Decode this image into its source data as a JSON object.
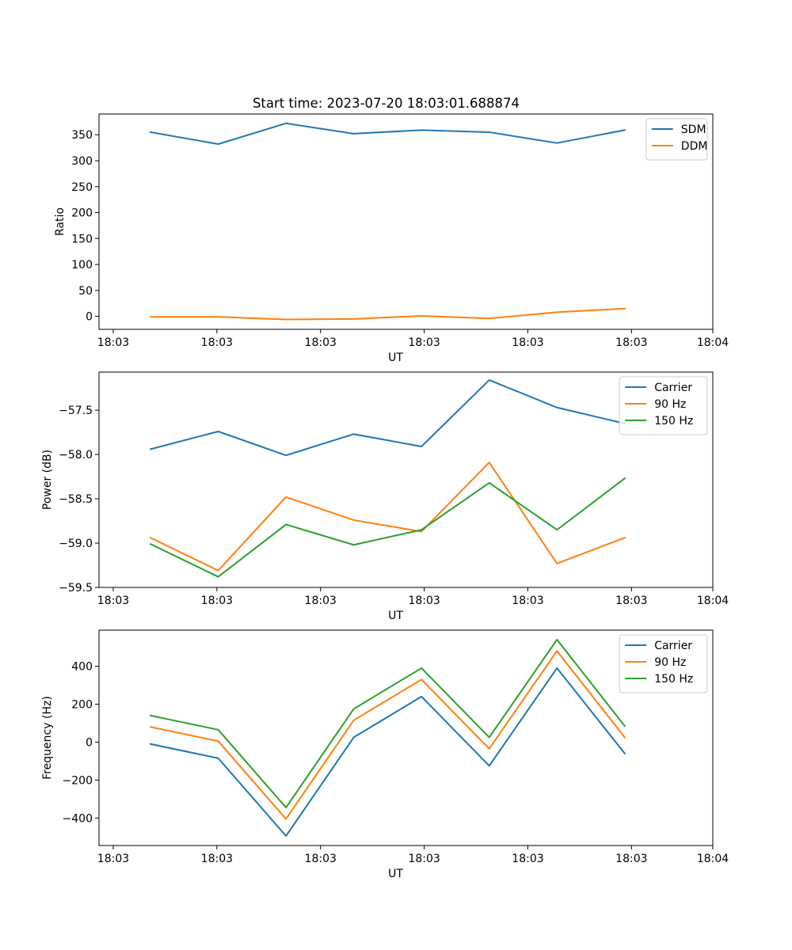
{
  "chart_data": [
    {
      "type": "line",
      "title": "Start time: 2023-07-20 18:03:01.688874",
      "xlabel": "UT",
      "ylabel": "Ratio",
      "x": [
        1,
        2,
        3,
        4,
        5,
        6,
        7,
        8
      ],
      "xlim": [
        0.24,
        9.3
      ],
      "xticks": [
        0.45,
        1.98,
        3.51,
        5.04,
        6.57,
        8.1,
        9.3
      ],
      "xticklabels": [
        "18:03",
        "18:03",
        "18:03",
        "18:03",
        "18:03",
        "18:03",
        "18:04"
      ],
      "ylim": [
        -25,
        390
      ],
      "yticks": [
        0,
        50,
        100,
        150,
        200,
        250,
        300,
        350
      ],
      "yticklabels": [
        "0",
        "50",
        "100",
        "150",
        "200",
        "250",
        "300",
        "350"
      ],
      "legend": "top-right",
      "series": [
        {
          "name": "SDM",
          "color": "#1f77b4",
          "values": [
            355,
            332,
            372,
            352,
            359,
            355,
            334,
            359
          ]
        },
        {
          "name": "DDM",
          "color": "#ff7f0e",
          "values": [
            -1,
            -1,
            -6,
            -5,
            1,
            -4,
            8,
            15
          ]
        }
      ]
    },
    {
      "type": "line",
      "xlabel": "UT",
      "ylabel": "Power (dB)",
      "x": [
        1,
        2,
        3,
        4,
        5,
        6,
        7,
        8
      ],
      "xlim": [
        0.24,
        9.3
      ],
      "xticks": [
        0.45,
        1.98,
        3.51,
        5.04,
        6.57,
        8.1,
        9.3
      ],
      "xticklabels": [
        "18:03",
        "18:03",
        "18:03",
        "18:03",
        "18:03",
        "18:03",
        "18:04"
      ],
      "ylim": [
        -59.5,
        -57.07
      ],
      "yticks": [
        -59.5,
        -59.0,
        -58.5,
        -58.0,
        -57.5
      ],
      "yticklabels": [
        "−59.5",
        "−59.0",
        "−58.5",
        "−58.0",
        "−57.5"
      ],
      "legend": "top-right",
      "series": [
        {
          "name": "Carrier",
          "color": "#1f77b4",
          "values": [
            -57.94,
            -57.74,
            -58.01,
            -57.77,
            -57.91,
            -57.16,
            -57.47,
            -57.65
          ]
        },
        {
          "name": "90 Hz",
          "color": "#ff7f0e",
          "values": [
            -58.94,
            -59.31,
            -58.48,
            -58.74,
            -58.87,
            -58.09,
            -59.23,
            -58.94
          ]
        },
        {
          "name": "150 Hz",
          "color": "#2ca02c",
          "values": [
            -59.01,
            -59.38,
            -58.79,
            -59.02,
            -58.85,
            -58.32,
            -58.85,
            -58.27
          ]
        }
      ]
    },
    {
      "type": "line",
      "xlabel": "UT",
      "ylabel": "Frequency (Hz)",
      "x": [
        1,
        2,
        3,
        4,
        5,
        6,
        7,
        8
      ],
      "xlim": [
        0.24,
        9.3
      ],
      "xticks": [
        0.45,
        1.98,
        3.51,
        5.04,
        6.57,
        8.1,
        9.3
      ],
      "xticklabels": [
        "18:03",
        "18:03",
        "18:03",
        "18:03",
        "18:03",
        "18:03",
        "18:04"
      ],
      "ylim": [
        -545,
        590
      ],
      "yticks": [
        -400,
        -200,
        0,
        200,
        400
      ],
      "yticklabels": [
        "−400",
        "−200",
        "0",
        "200",
        "400"
      ],
      "legend": "top-right",
      "series": [
        {
          "name": "Carrier",
          "color": "#1f77b4",
          "values": [
            -10,
            -85,
            -495,
            25,
            240,
            -125,
            390,
            -60
          ]
        },
        {
          "name": "90 Hz",
          "color": "#ff7f0e",
          "values": [
            80,
            5,
            -405,
            115,
            330,
            -35,
            480,
            25
          ]
        },
        {
          "name": "150 Hz",
          "color": "#2ca02c",
          "values": [
            140,
            65,
            -345,
            175,
            390,
            25,
            540,
            85
          ]
        }
      ]
    }
  ]
}
